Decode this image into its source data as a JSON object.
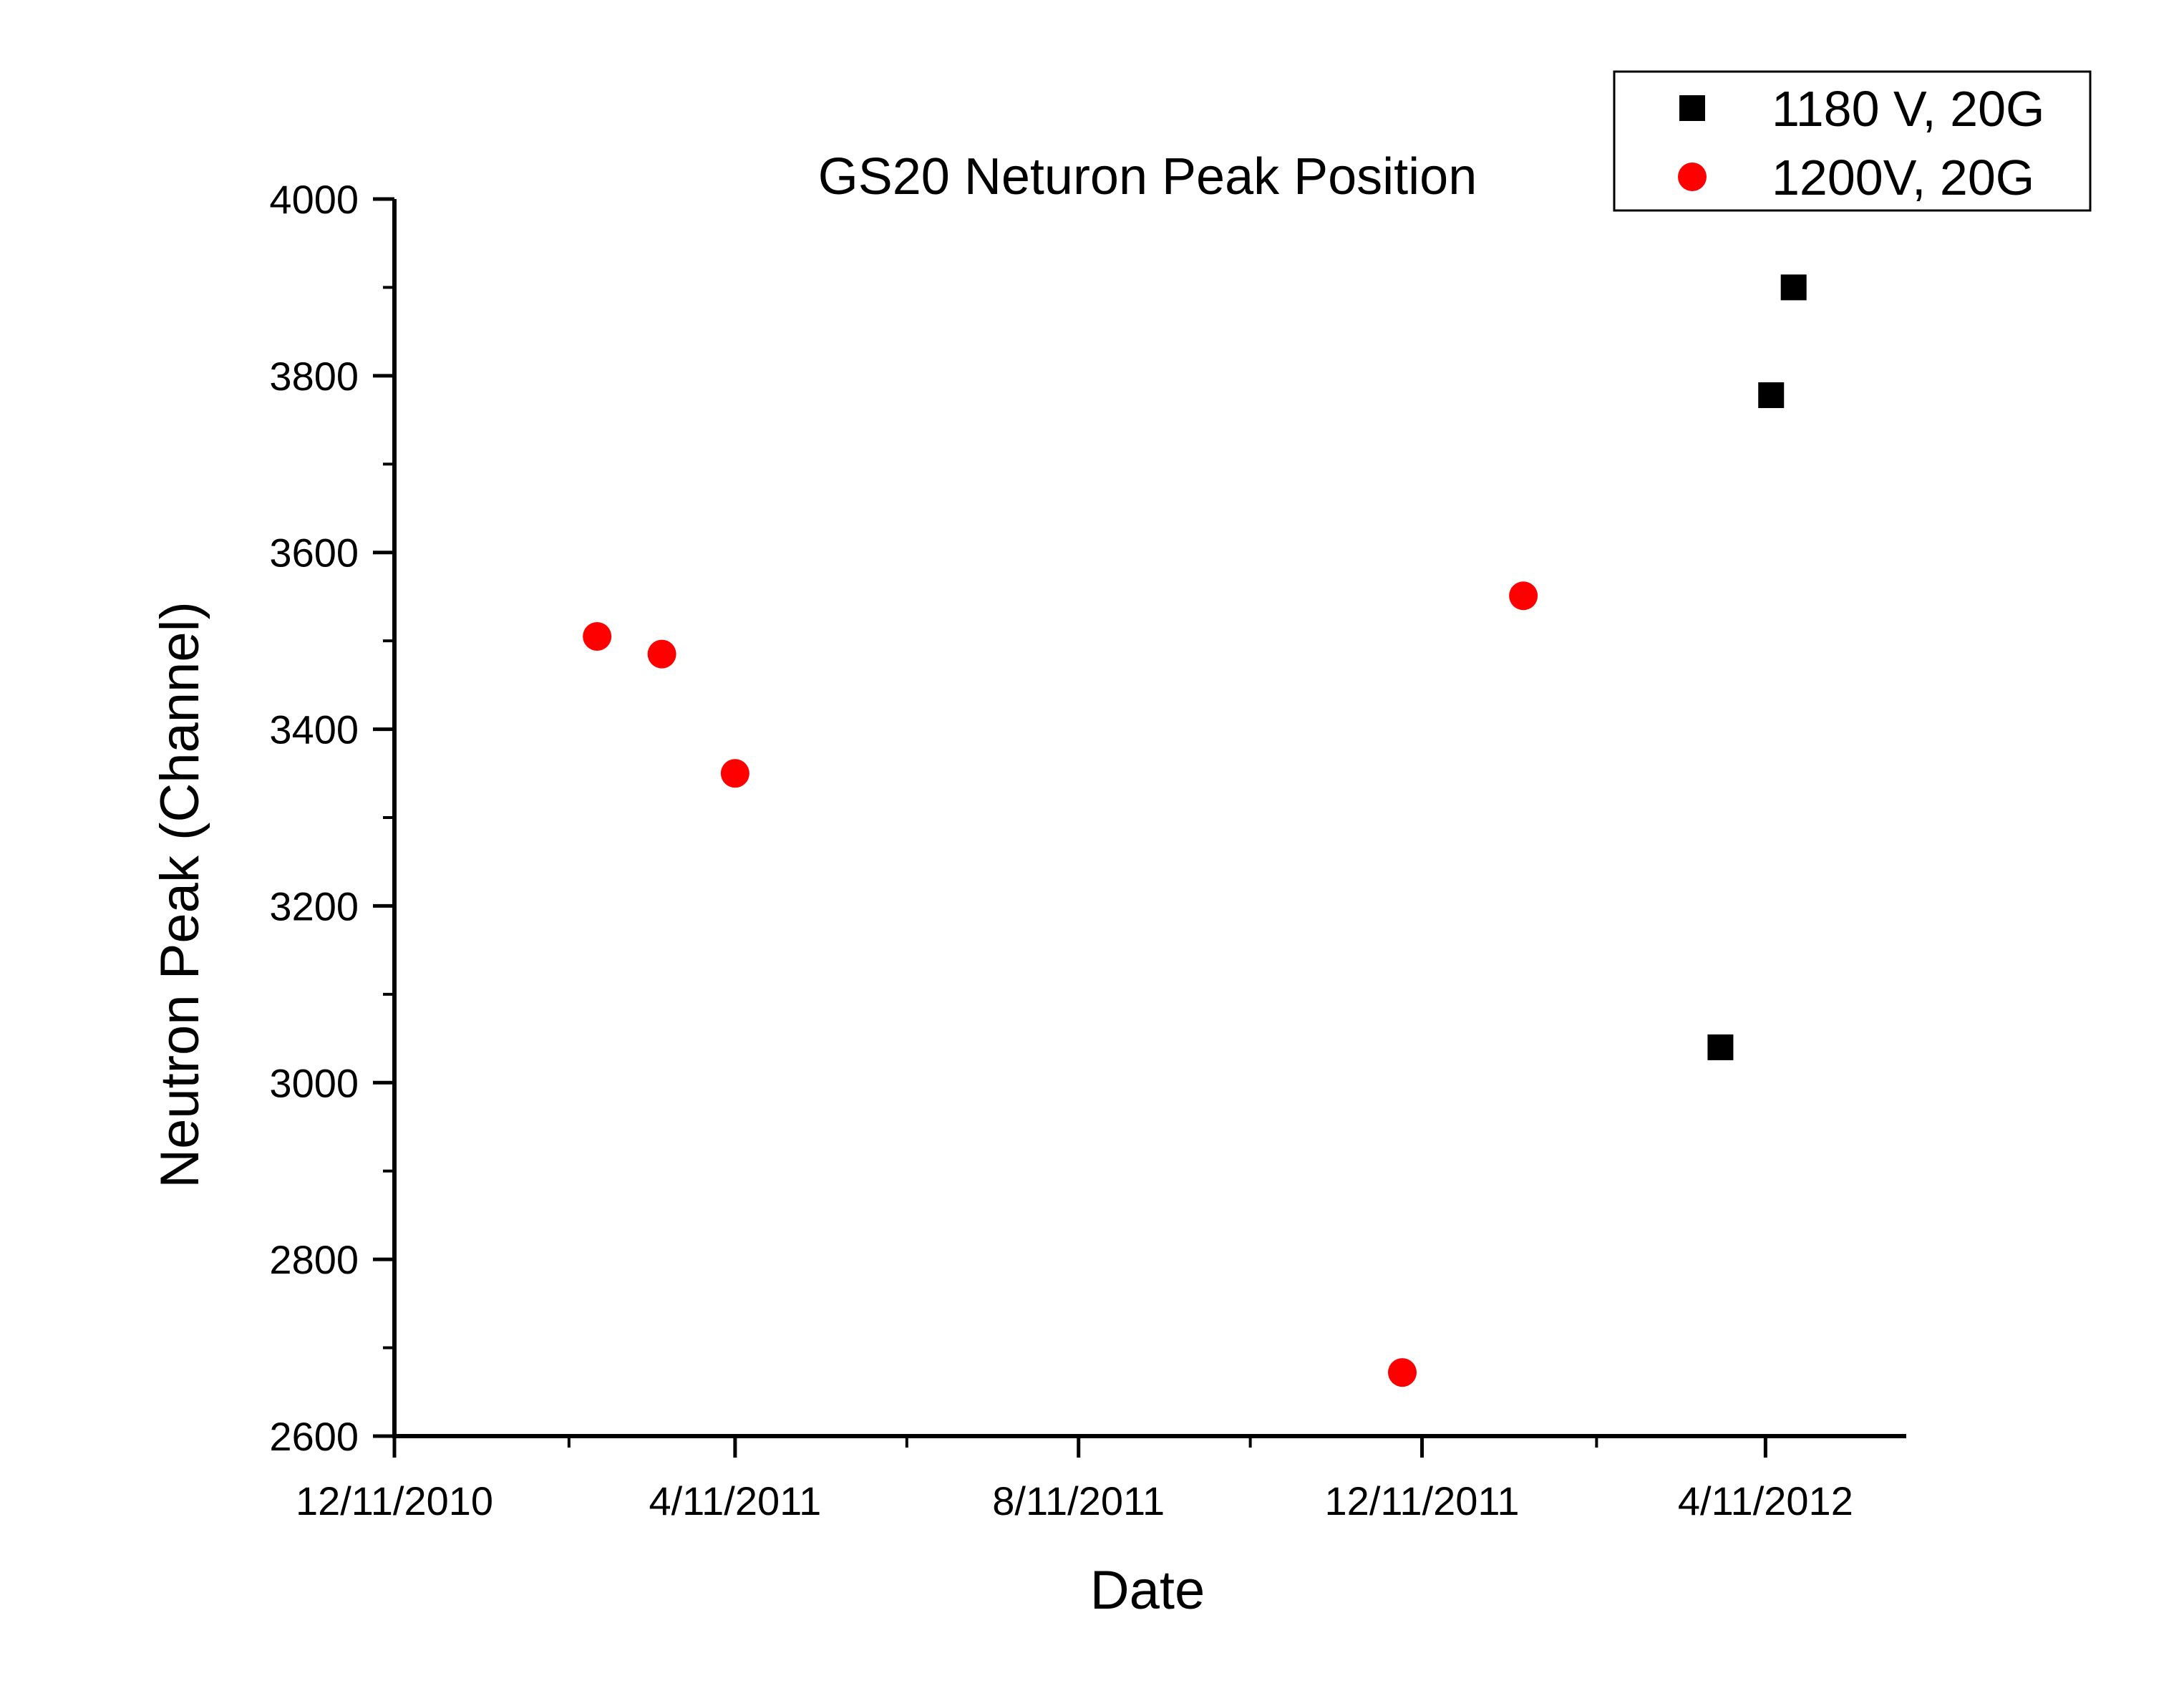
{
  "chart_data": {
    "type": "scatter",
    "title": "GS20 Neturon Peak Position",
    "xlabel": "Date",
    "ylabel": "Neutron Peak (Channel)",
    "x_type": "date",
    "xlim": [
      "2010-12-11",
      "2012-05-31"
    ],
    "ylim": [
      2600,
      4000
    ],
    "x_tick_labels": [
      {
        "date": "2010-12-11",
        "label": "12/11/2010"
      },
      {
        "date": "2011-04-11",
        "label": "4/11/2011"
      },
      {
        "date": "2011-08-11",
        "label": "8/11/2011"
      },
      {
        "date": "2011-12-11",
        "label": "12/11/2011"
      },
      {
        "date": "2012-04-11",
        "label": "4/11/2012"
      }
    ],
    "x_minor_ticks": [
      "2011-02-11",
      "2011-06-11",
      "2011-10-11",
      "2012-02-11"
    ],
    "y_ticks": [
      2600,
      2800,
      3000,
      3200,
      3400,
      3600,
      3800,
      4000
    ],
    "y_tick_labels": [
      "2600",
      "2800",
      "3000",
      "3200",
      "3400",
      "3600",
      "3800",
      "4000"
    ],
    "y_minor_ticks": [
      2700,
      2900,
      3100,
      3300,
      3500,
      3700,
      3900
    ],
    "grid": false,
    "legend_position": "top-right",
    "series": [
      {
        "name": "1180 V, 20G",
        "marker": "square",
        "color": "#000000",
        "points": [
          {
            "x": "2012-03-26",
            "y": 3040
          },
          {
            "x": "2012-04-13",
            "y": 3778
          },
          {
            "x": "2012-04-21",
            "y": 3900
          }
        ]
      },
      {
        "name": "1200V, 20G",
        "marker": "circle",
        "color": "#ff0000",
        "points": [
          {
            "x": "2011-02-21",
            "y": 3505
          },
          {
            "x": "2011-03-16",
            "y": 3485
          },
          {
            "x": "2011-04-11",
            "y": 3350
          },
          {
            "x": "2011-12-04",
            "y": 2672
          },
          {
            "x": "2012-01-16",
            "y": 3551
          }
        ]
      }
    ]
  }
}
